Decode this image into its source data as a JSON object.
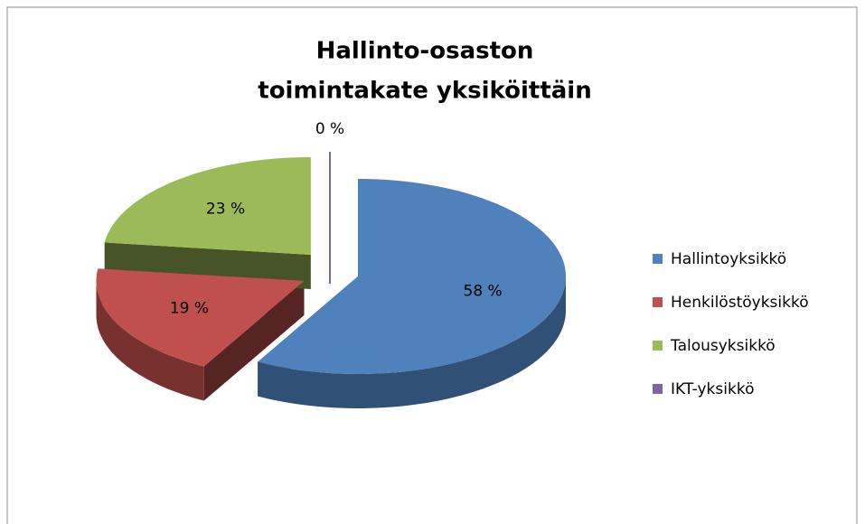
{
  "chart_data": {
    "type": "pie",
    "title": [
      "Hallinto-osaston",
      "toimintakate yksiköittäin"
    ],
    "categories": [
      "Hallintoyksikkö",
      "Henkilöstöyksikkö",
      "Talousyksikkö",
      "IKT-yksikkö"
    ],
    "values": [
      58,
      19,
      23,
      0
    ],
    "value_labels": [
      "58 %",
      "19 %",
      "23 %",
      "0 %"
    ],
    "colors": [
      "#4f81bd",
      "#c0504d",
      "#9bbb59",
      "#8064a2"
    ],
    "legend": "right"
  }
}
